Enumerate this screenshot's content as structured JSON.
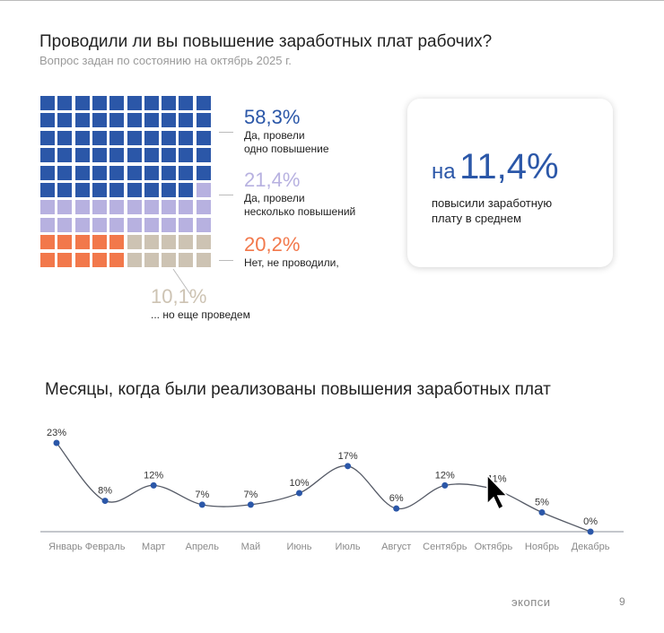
{
  "header": {
    "title": "Проводили ли вы повышение заработных плат рабочих?",
    "subtitle": "Вопрос задан по состоянию на октябрь 2025 г."
  },
  "waffle": {
    "colors": {
      "one": "#2b57a8",
      "several": "#b7b1e0",
      "no": "#f2784b",
      "later": "#cdc3b3"
    },
    "counts": {
      "one": 59,
      "several": 21,
      "no": 10,
      "later": 10
    },
    "items": [
      {
        "pct": "58,3%",
        "desc1": "Да, провели",
        "desc2": "одно повышение",
        "color": "#2b57a8"
      },
      {
        "pct": "21,4%",
        "desc1": "Да, провели",
        "desc2": "несколько повышений",
        "color": "#b7b1e0"
      },
      {
        "pct": "20,2%",
        "desc1": "Нет, не проводили,",
        "desc2": "",
        "color": "#f2784b"
      },
      {
        "pct": "10,1%",
        "desc1": "... но еще проведем",
        "desc2": "",
        "color": "#cdc3b3"
      }
    ]
  },
  "card": {
    "prefix": "на",
    "value": "11,4%",
    "desc1": "повысили заработную",
    "desc2": "плату в среднем"
  },
  "chart_data": {
    "type": "line",
    "title": "Месяцы, когда были реализованы повышения заработных плат",
    "categories": [
      "Январь",
      "Февраль",
      "Март",
      "Апрель",
      "Май",
      "Июнь",
      "Июль",
      "Август",
      "Сентябрь",
      "Октябрь",
      "Ноябрь",
      "Декабрь"
    ],
    "values": [
      23,
      8,
      12,
      7,
      7,
      10,
      17,
      6,
      12,
      11,
      5,
      0
    ],
    "labels": [
      "23%",
      "8%",
      "12%",
      "7%",
      "7%",
      "10%",
      "17%",
      "6%",
      "12%",
      "11%",
      "5%",
      "0%"
    ],
    "ylim": [
      0,
      23
    ],
    "color": "#2b57a8",
    "line_color": "#555a66",
    "grid": false,
    "smooth": true
  },
  "footer": {
    "brand": "экопси",
    "page": "9"
  }
}
